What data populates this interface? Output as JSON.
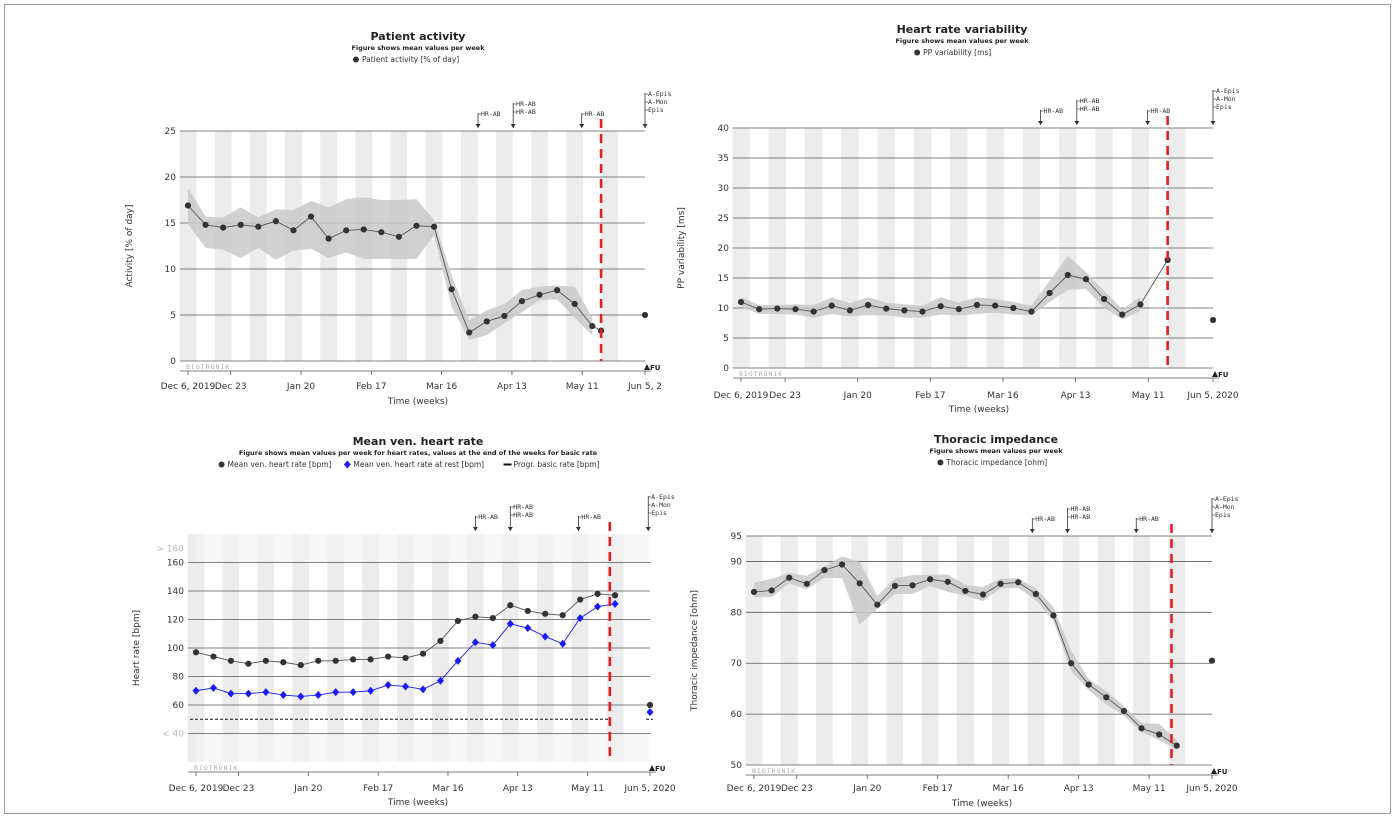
{
  "chart_data": [
    {
      "id": "activity",
      "type": "line",
      "title": "Patient activity",
      "subtitle": "Figure shows mean values per week",
      "legend": [
        {
          "label": "Patient activity [% of day]",
          "marker": "circle",
          "color": "#333333"
        }
      ],
      "ylabel": "Activity [% of day]",
      "xlabel": "Time (weeks)",
      "ylim": [
        0,
        25
      ],
      "yticks": [
        0,
        5,
        10,
        15,
        20,
        25
      ],
      "ytick_labels": [
        "0",
        "5",
        "10",
        "15",
        "20",
        "25"
      ],
      "xlim": [
        0,
        26
      ],
      "xticks": [
        {
          "label": "Dec 6, 2019",
          "w": 0
        },
        {
          "label": "Dec 23",
          "w": 2.43
        },
        {
          "label": "Jan 20",
          "w": 6.43
        },
        {
          "label": "Feb 17",
          "w": 10.43
        },
        {
          "label": "Mar 16",
          "w": 14.43
        },
        {
          "label": "Apr 13",
          "w": 18.43
        },
        {
          "label": "May 11",
          "w": 22.43
        },
        {
          "label": "Jun 5, 2",
          "w": 26
        }
      ],
      "series": [
        {
          "kind": "mean",
          "x": [
            0,
            1,
            2,
            3,
            4,
            5,
            6,
            7,
            8,
            9,
            10,
            11,
            12,
            13,
            14,
            15,
            16,
            17,
            18,
            19,
            20,
            21,
            22,
            23
          ],
          "values": [
            16.9,
            14.8,
            14.5,
            14.8,
            14.6,
            15.2,
            14.2,
            15.7,
            13.3,
            14.2,
            14.3,
            14.0,
            13.5,
            14.7,
            14.6,
            7.8,
            3.1,
            4.3,
            4.9,
            6.5,
            7.2,
            7.7,
            6.2,
            3.8
          ],
          "low": [
            14.9,
            12.3,
            12.1,
            11.2,
            12.3,
            11.0,
            12.0,
            12.2,
            11.2,
            11.8,
            11.1,
            11.1,
            11.1,
            11.1,
            13.7,
            5.9,
            2.3,
            2.8,
            4.1,
            5.3,
            6.6,
            6.7,
            4.7,
            2.8
          ],
          "high": [
            18.8,
            15.7,
            15.6,
            16.7,
            15.6,
            16.5,
            16.4,
            17.4,
            16.7,
            17.6,
            17.8,
            17.5,
            17.5,
            17.6,
            15.3,
            9.3,
            4.4,
            5.5,
            6.2,
            7.7,
            8.1,
            8.2,
            8.1,
            4.7
          ]
        }
      ],
      "last_point": {
        "x": 23.5,
        "y": 3.3
      },
      "fu_point": {
        "x": 26.0,
        "y": 5.0
      },
      "followup_week": 23.5,
      "fu_label": "FU",
      "events": [
        {
          "w": 16.5,
          "labels": [
            "HR-AB"
          ]
        },
        {
          "w": 18.5,
          "labels": [
            "HR-AB",
            "HR-AB"
          ]
        },
        {
          "w": 22.4,
          "labels": [
            "HR-AB"
          ]
        },
        {
          "w": 26.0,
          "labels": [
            "A-Epis",
            "A-Mon",
            "Epis"
          ]
        }
      ],
      "brand": "BIOTRONIK"
    },
    {
      "id": "hrv",
      "type": "line",
      "title": "Heart rate variability",
      "subtitle": "Figure shows mean values per week",
      "legend": [
        {
          "label": "PP variability [ms]",
          "marker": "circle",
          "color": "#333333"
        }
      ],
      "ylabel": "PP variability [ms]",
      "xlabel": "Time (weeks)",
      "ylim": [
        0,
        40
      ],
      "yticks": [
        0,
        5,
        10,
        15,
        20,
        25,
        30,
        35,
        40
      ],
      "ytick_labels": [
        "0",
        "5",
        "10",
        "15",
        "20",
        "25",
        "30",
        "35",
        "40"
      ],
      "xlim": [
        0,
        26
      ],
      "xticks": [
        {
          "label": "Dec 6, 2019",
          "w": 0
        },
        {
          "label": "Dec 23",
          "w": 2.43
        },
        {
          "label": "Jan 20",
          "w": 6.43
        },
        {
          "label": "Feb 17",
          "w": 10.43
        },
        {
          "label": "Mar 16",
          "w": 14.43
        },
        {
          "label": "Apr 13",
          "w": 18.43
        },
        {
          "label": "May 11",
          "w": 22.43
        },
        {
          "label": "Jun 5, 2020",
          "w": 26
        }
      ],
      "series": [
        {
          "kind": "mean",
          "x": [
            0,
            1,
            2,
            3,
            4,
            5,
            6,
            7,
            8,
            9,
            10,
            11,
            12,
            13,
            14,
            15,
            16,
            17,
            18,
            19,
            20,
            21,
            22
          ],
          "values": [
            11.0,
            9.8,
            9.9,
            9.8,
            9.4,
            10.4,
            9.6,
            10.5,
            9.9,
            9.6,
            9.4,
            10.3,
            9.8,
            10.5,
            10.4,
            10.0,
            9.4,
            12.5,
            15.5,
            14.8,
            11.5,
            8.9,
            10.6
          ],
          "low": [
            10.1,
            9.0,
            9.0,
            8.9,
            8.4,
            9.0,
            8.6,
            8.8,
            8.8,
            8.4,
            8.4,
            8.9,
            8.8,
            9.0,
            9.2,
            8.9,
            8.8,
            11.0,
            13.0,
            13.2,
            10.0,
            8.1,
            9.5
          ],
          "high": [
            11.8,
            10.5,
            10.5,
            10.6,
            10.5,
            11.8,
            10.8,
            11.8,
            10.9,
            10.6,
            10.4,
            11.8,
            10.9,
            11.8,
            11.5,
            11.0,
            10.4,
            14.5,
            18.7,
            16.0,
            12.9,
            9.8,
            11.9
          ]
        }
      ],
      "last_point": {
        "x": 23.5,
        "y": 18.0
      },
      "fu_point": {
        "x": 26.0,
        "y": 8.0
      },
      "followup_week": 23.5,
      "fu_label": "FU",
      "events": [
        {
          "w": 16.5,
          "labels": [
            "HR-AB"
          ]
        },
        {
          "w": 18.5,
          "labels": [
            "HR-AB",
            "HR-AB"
          ]
        },
        {
          "w": 22.4,
          "labels": [
            "HR-AB"
          ]
        },
        {
          "w": 26.0,
          "labels": [
            "A-Epis",
            "A-Mon",
            "Epis"
          ]
        }
      ],
      "brand": "BIOTRONIK"
    },
    {
      "id": "heartrate",
      "type": "line",
      "title": "Mean ven. heart rate",
      "subtitle": "Figure shows mean values per week for heart rates, values at the end of the weeks for basic rate",
      "legend": [
        {
          "label": "Mean ven. heart rate [bpm]",
          "marker": "circle",
          "color": "#333333"
        },
        {
          "label": "Mean ven. heart rate at rest [bpm]",
          "marker": "diamond",
          "color": "#1a1aff"
        },
        {
          "label": "Progr. basic rate [bpm]",
          "marker": "dash",
          "color": "#111111"
        }
      ],
      "ylabel": "Heart rate [bpm]",
      "xlabel": "Time (weeks)",
      "ylim": [
        20,
        180
      ],
      "yticks": [
        30,
        40,
        60,
        80,
        100,
        120,
        140,
        160,
        170
      ],
      "ytick_labels": [
        "",
        "< 40",
        "60",
        "80",
        "100",
        "120",
        "140",
        "160",
        "> 160"
      ],
      "ytick_faint": [
        true,
        true,
        false,
        false,
        false,
        false,
        false,
        false,
        true
      ],
      "grid_values": [
        40,
        60,
        80,
        100,
        120,
        140,
        160
      ],
      "xlim": [
        0,
        26
      ],
      "xticks": [
        {
          "label": "Dec 6, 2019",
          "w": 0
        },
        {
          "label": "Dec 23",
          "w": 2.43
        },
        {
          "label": "Jan 20",
          "w": 6.43
        },
        {
          "label": "Feb 17",
          "w": 10.43
        },
        {
          "label": "Mar 16",
          "w": 14.43
        },
        {
          "label": "Apr 13",
          "w": 18.43
        },
        {
          "label": "May 11",
          "w": 22.43
        },
        {
          "label": "Jun 5, 2020",
          "w": 26
        }
      ],
      "series": [
        {
          "kind": "line-circle",
          "color": "#333333",
          "x": [
            0,
            1,
            2,
            3,
            4,
            5,
            6,
            7,
            8,
            9,
            10,
            11,
            12,
            13,
            14,
            15,
            16,
            17,
            18,
            19,
            20,
            21,
            22,
            23,
            24
          ],
          "values": [
            97,
            94,
            91,
            89,
            91,
            90,
            88,
            91,
            91,
            92,
            92,
            94,
            93,
            96,
            105,
            119,
            122,
            121,
            130,
            126,
            124,
            123,
            134,
            138,
            137
          ]
        },
        {
          "kind": "line-diamond",
          "color": "#1a1aff",
          "x": [
            0,
            1,
            2,
            3,
            4,
            5,
            6,
            7,
            8,
            9,
            10,
            11,
            12,
            13,
            14,
            15,
            16,
            17,
            18,
            19,
            20,
            21,
            22,
            23,
            24
          ],
          "values": [
            70,
            72,
            68,
            68,
            69,
            67,
            66,
            67,
            69,
            69,
            70,
            74,
            73,
            71,
            77,
            91,
            104,
            102,
            117,
            114,
            108,
            103,
            121,
            129,
            131
          ]
        }
      ],
      "basic_rate": 50,
      "fu_points": [
        {
          "x": 26.0,
          "y": 60,
          "kind": "circle"
        },
        {
          "x": 26.0,
          "y": 55,
          "kind": "diamond"
        }
      ],
      "followup_week": 23.7,
      "fu_label": "FU",
      "events": [
        {
          "w": 16.0,
          "labels": [
            "HR-AB"
          ]
        },
        {
          "w": 18.0,
          "labels": [
            "HR-AB",
            "HR-AB"
          ]
        },
        {
          "w": 21.9,
          "labels": [
            "HR-AB"
          ]
        },
        {
          "w": 25.9,
          "labels": [
            "A-Epis",
            "A-Mon",
            "Epis"
          ]
        }
      ],
      "brand": "BIOTRONIK"
    },
    {
      "id": "thoracic",
      "type": "line",
      "title": "Thoracic impedance",
      "subtitle": "Figure shows mean values per week",
      "legend": [
        {
          "label": "Thoracic impedance [ohm]",
          "marker": "circle",
          "color": "#333333"
        }
      ],
      "ylabel": "Thoracic impedance [ohm]",
      "xlabel": "Time (weeks)",
      "ylim": [
        50,
        95
      ],
      "yticks": [
        50,
        60,
        70,
        80,
        90,
        95
      ],
      "ytick_labels": [
        "50",
        "60",
        "70",
        "80",
        "90",
        "95"
      ],
      "xlim": [
        0,
        26
      ],
      "xticks": [
        {
          "label": "Dec 6, 2019",
          "w": 0
        },
        {
          "label": "Dec 23",
          "w": 2.43
        },
        {
          "label": "Jan 20",
          "w": 6.43
        },
        {
          "label": "Feb 17",
          "w": 10.43
        },
        {
          "label": "Mar 16",
          "w": 14.43
        },
        {
          "label": "Apr 13",
          "w": 18.43
        },
        {
          "label": "May 11",
          "w": 22.43
        },
        {
          "label": "Jun 5, 2020",
          "w": 26
        }
      ],
      "series": [
        {
          "kind": "mean",
          "x": [
            0,
            1,
            2,
            3,
            4,
            5,
            6,
            7,
            8,
            9,
            10,
            11,
            12,
            13,
            14,
            15,
            16,
            17,
            18,
            19,
            20,
            21,
            22,
            23,
            24
          ],
          "values": [
            84.0,
            84.3,
            86.8,
            85.6,
            88.3,
            89.4,
            85.7,
            81.5,
            85.2,
            85.3,
            86.5,
            86.0,
            84.2,
            83.5,
            85.6,
            85.9,
            83.6,
            79.4,
            70.0,
            65.8,
            63.3,
            60.6,
            57.2,
            56.0,
            53.8
          ],
          "low": [
            83.0,
            83.0,
            85.7,
            84.5,
            86.8,
            86.7,
            77.6,
            80.6,
            83.6,
            83.6,
            85.2,
            84.0,
            83.3,
            82.2,
            84.7,
            84.8,
            82.4,
            78.3,
            68.5,
            64.7,
            61.9,
            59.7,
            56.5,
            54.9,
            53.0
          ],
          "high": [
            85.8,
            86.6,
            87.7,
            87.2,
            89.1,
            91.0,
            89.9,
            83.2,
            86.7,
            87.3,
            87.4,
            87.4,
            85.4,
            85.0,
            86.6,
            86.7,
            84.7,
            81.0,
            72.5,
            66.9,
            64.5,
            61.6,
            58.2,
            58.1,
            54.9
          ]
        }
      ],
      "fu_point": {
        "x": 26.0,
        "y": 70.5
      },
      "followup_week": 23.7,
      "fu_label": "FU",
      "events": [
        {
          "w": 15.8,
          "labels": [
            "HR-AB"
          ]
        },
        {
          "w": 17.8,
          "labels": [
            "HR-AB",
            "HR-AB"
          ]
        },
        {
          "w": 21.7,
          "labels": [
            "HR-AB"
          ]
        },
        {
          "w": 26.0,
          "labels": [
            "A-Epis",
            "A-Mon",
            "Epis"
          ]
        }
      ],
      "brand": "BIOTRONIK"
    }
  ]
}
